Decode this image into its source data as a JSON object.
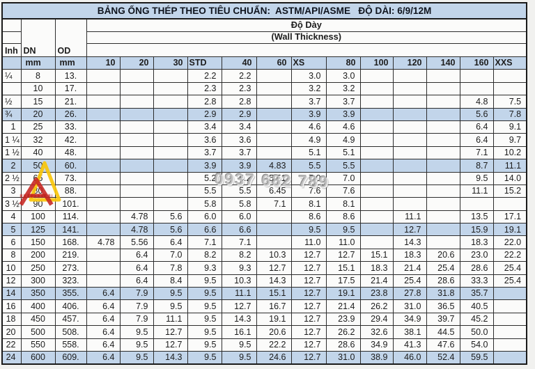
{
  "title": "BẢNG ỐNG THÉP THEO TIÊU CHUẨN:  ASTM/API/ASME   ĐỘ DÀI: 6/9/12M",
  "header": {
    "group_label_vi": "Độ Dày",
    "group_label_en": "(Wall Thickness)",
    "inch_label": "Inh",
    "dn_label": "DN",
    "od_label": "OD",
    "dn_unit": "mm",
    "od_unit": "mm",
    "schedules": [
      "10",
      "20",
      "30",
      "STD",
      "40",
      "60",
      "XS",
      "80",
      "100",
      "120",
      "140",
      "160",
      "XXS"
    ]
  },
  "colors": {
    "band_blue": "#c2d5ea",
    "grid_border": "#2c2c2c",
    "cell_bg": "#fbfbfa"
  },
  "watermark": {
    "phone": "0937 682 789",
    "logo": "red-yellow-triangle-logo"
  },
  "rows": [
    {
      "inh": "¼",
      "dn": "8",
      "od": "13.",
      "hl": false,
      "v": [
        "",
        "",
        "",
        "2.2",
        "2.2",
        "",
        "3.0",
        "3.0",
        "",
        "",
        "",
        "",
        ""
      ]
    },
    {
      "inh": "",
      "dn": "10",
      "od": "17.",
      "hl": false,
      "v": [
        "",
        "",
        "",
        "2.3",
        "2.3",
        "",
        "3.2",
        "3.2",
        "",
        "",
        "",
        "",
        ""
      ]
    },
    {
      "inh": "½",
      "dn": "15",
      "od": "21.",
      "hl": false,
      "v": [
        "",
        "",
        "",
        "2.8",
        "2.8",
        "",
        "3.7",
        "3.7",
        "",
        "",
        "",
        "4.8",
        "7.5"
      ]
    },
    {
      "inh": "¾",
      "dn": "20",
      "od": "26.",
      "hl": true,
      "v": [
        "",
        "",
        "",
        "2.9",
        "2.9",
        "",
        "3.9",
        "3.9",
        "",
        "",
        "",
        "5.6",
        "7.8"
      ]
    },
    {
      "inh": "1",
      "dn": "25",
      "od": "33.",
      "hl": false,
      "v": [
        "",
        "",
        "",
        "3.4",
        "3.4",
        "",
        "4.6",
        "4.6",
        "",
        "",
        "",
        "6.4",
        "9.1"
      ]
    },
    {
      "inh": "1 ¼",
      "dn": "32",
      "od": "42.",
      "hl": false,
      "v": [
        "",
        "",
        "",
        "3.6",
        "3.6",
        "",
        "4.9",
        "4.9",
        "",
        "",
        "",
        "6.4",
        "9.7"
      ]
    },
    {
      "inh": "1 ½",
      "dn": "40",
      "od": "48.",
      "hl": false,
      "v": [
        "",
        "",
        "",
        "3.7",
        "3.7",
        "",
        "5.1",
        "5.1",
        "",
        "",
        "",
        "7.1",
        "10.2"
      ]
    },
    {
      "inh": "2",
      "dn": "50",
      "od": "60.",
      "hl": true,
      "v": [
        "",
        "",
        "",
        "3.9",
        "3.9",
        "4.83",
        "5.5",
        "5.5",
        "",
        "",
        "",
        "8.7",
        "11.1"
      ]
    },
    {
      "inh": "2 ½",
      "dn": "65",
      "od": "73.",
      "hl": false,
      "v": [
        "",
        "",
        "",
        "5.2",
        "5.2",
        "5.51",
        "7.0",
        "7.0",
        "",
        "",
        "",
        "9.5",
        "14.0"
      ]
    },
    {
      "inh": "3",
      "dn": "80",
      "od": "88.",
      "hl": false,
      "v": [
        "",
        "",
        "",
        "5.5",
        "5.5",
        "6.45",
        "7.6",
        "7.6",
        "",
        "",
        "",
        "11.1",
        "15.2"
      ]
    },
    {
      "inh": "3 ½",
      "dn": "90",
      "od": "101.",
      "hl": false,
      "v": [
        "",
        "",
        "",
        "5.8",
        "5.8",
        "7.1",
        "8.1",
        "8.1",
        "",
        "",
        "",
        "",
        ""
      ]
    },
    {
      "inh": "4",
      "dn": "100",
      "od": "114.",
      "hl": false,
      "v": [
        "",
        "4.78",
        "5.6",
        "6.0",
        "6.0",
        "",
        "8.6",
        "8.6",
        "",
        "11.1",
        "",
        "13.5",
        "17.1"
      ]
    },
    {
      "inh": "5",
      "dn": "125",
      "od": "141.",
      "hl": true,
      "v": [
        "",
        "4.78",
        "5.6",
        "6.6",
        "6.6",
        "",
        "9.5",
        "9.5",
        "",
        "12.7",
        "",
        "15.9",
        "19.1"
      ]
    },
    {
      "inh": "6",
      "dn": "150",
      "od": "168.",
      "hl": false,
      "v": [
        "4.78",
        "5.56",
        "6.4",
        "7.1",
        "7.1",
        "",
        "11.0",
        "11.0",
        "",
        "14.3",
        "",
        "18.3",
        "22.0"
      ]
    },
    {
      "inh": "8",
      "dn": "200",
      "od": "219.",
      "hl": false,
      "v": [
        "",
        "6.4",
        "7.0",
        "8.2",
        "8.2",
        "10.3",
        "12.7",
        "12.7",
        "15.1",
        "18.3",
        "20.6",
        "23.0",
        "22.2"
      ]
    },
    {
      "inh": "10",
      "dn": "250",
      "od": "273.",
      "hl": false,
      "v": [
        "",
        "6.4",
        "7.8",
        "9.3",
        "9.3",
        "12.7",
        "12.7",
        "15.1",
        "18.3",
        "21.4",
        "25.4",
        "28.6",
        "25.4"
      ]
    },
    {
      "inh": "12",
      "dn": "300",
      "od": "323.",
      "hl": false,
      "v": [
        "",
        "6.4",
        "8.4",
        "9.5",
        "10.3",
        "14.3",
        "12.7",
        "17.5",
        "21.4",
        "25.4",
        "28.6",
        "33.3",
        "25.4"
      ]
    },
    {
      "inh": "14",
      "dn": "350",
      "od": "355.",
      "hl": true,
      "v": [
        "6.4",
        "7.9",
        "9.5",
        "9.5",
        "11.1",
        "15.1",
        "12.7",
        "19.1",
        "23.8",
        "27.8",
        "31.8",
        "35.7",
        ""
      ]
    },
    {
      "inh": "16",
      "dn": "400",
      "od": "406.",
      "hl": false,
      "v": [
        "6.4",
        "7.9",
        "9.5",
        "9.5",
        "12.7",
        "16.7",
        "12.7",
        "21.4",
        "26.2",
        "31.0",
        "36.5",
        "40.5",
        ""
      ]
    },
    {
      "inh": "18",
      "dn": "450",
      "od": "457.",
      "hl": false,
      "v": [
        "6.4",
        "7.9",
        "11.1",
        "9.5",
        "14.3",
        "19.1",
        "12.7",
        "23.9",
        "29.4",
        "34.9",
        "39.7",
        "45.2",
        ""
      ]
    },
    {
      "inh": "20",
      "dn": "500",
      "od": "508.",
      "hl": false,
      "v": [
        "6.4",
        "9.5",
        "12.7",
        "9.5",
        "16.1",
        "20.6",
        "12.7",
        "26.2",
        "32.6",
        "38.1",
        "44.5",
        "50.0",
        ""
      ]
    },
    {
      "inh": "22",
      "dn": "550",
      "od": "558.",
      "hl": false,
      "v": [
        "6.4",
        "9.5",
        "12.7",
        "9.5",
        "9.5",
        "22.2",
        "12.7",
        "28.6",
        "34.9",
        "41.3",
        "47.6",
        "54.0",
        ""
      ]
    },
    {
      "inh": "24",
      "dn": "600",
      "od": "609.",
      "hl": true,
      "v": [
        "6.4",
        "9.5",
        "14.3",
        "9.5",
        "9.5",
        "24.6",
        "12.7",
        "31.0",
        "38.9",
        "46.0",
        "52.4",
        "59.5",
        ""
      ]
    }
  ]
}
